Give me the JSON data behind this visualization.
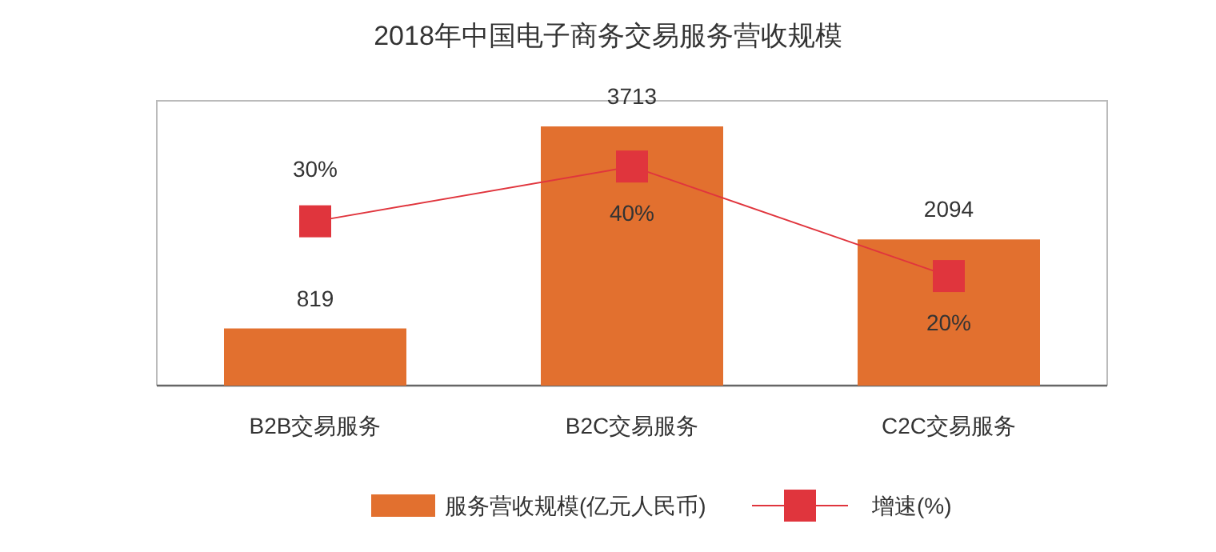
{
  "chart_data": {
    "type": "bar",
    "title": "2018年中国电子商务交易服务营收规模",
    "categories": [
      "B2B交易服务",
      "B2C交易服务",
      "C2C交易服务"
    ],
    "series": [
      {
        "name": "服务营收规模(亿元人民币)",
        "color": "#e2702f",
        "values": [
          819,
          3713,
          2094
        ],
        "value_labels": [
          "819",
          "3713",
          "2094"
        ]
      },
      {
        "name": "增速(%)",
        "type": "line",
        "axis": "y2",
        "color": "#e0353d",
        "marker": "square",
        "values": [
          30,
          40,
          20
        ],
        "value_labels": [
          "30%",
          "40%",
          "20%"
        ]
      }
    ],
    "ylim": [
      0,
      4080
    ],
    "y2lim": [
      0,
      52
    ],
    "tick_labels": "x",
    "legend": "bottom"
  }
}
